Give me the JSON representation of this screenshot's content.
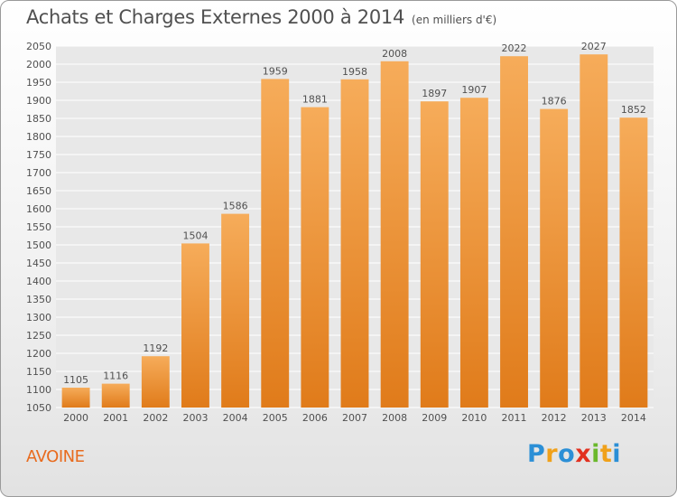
{
  "title": "Achats et Charges Externes 2000 à 2014",
  "subtitle": "(en milliers d'€)",
  "town": "AVOINE",
  "brand": {
    "text": "Proxiti",
    "letters": [
      {
        "ch": "P",
        "color": "#2b8fd6"
      },
      {
        "ch": "r",
        "color": "#f0a11a"
      },
      {
        "ch": "o",
        "color": "#2b8fd6"
      },
      {
        "ch": "x",
        "color": "#e2301f"
      },
      {
        "ch": "i",
        "color": "#6ab82c"
      },
      {
        "ch": "t",
        "color": "#f0a11a"
      },
      {
        "ch": "i",
        "color": "#2b8fd6"
      }
    ]
  },
  "colors": {
    "bar_top": "#f6ac5a",
    "bar_bottom": "#e07b1a",
    "plot_bg": "#e8e8e8",
    "grid": "#ffffff",
    "text": "#505050",
    "town": "#e86b1e"
  },
  "chart_data": {
    "type": "bar",
    "title": "Achats et Charges Externes 2000 à 2014",
    "subtitle": "(en milliers d'€)",
    "xlabel": "",
    "ylabel": "",
    "categories": [
      "2000",
      "2001",
      "2002",
      "2003",
      "2004",
      "2005",
      "2006",
      "2007",
      "2008",
      "2009",
      "2010",
      "2011",
      "2012",
      "2013",
      "2014"
    ],
    "values": [
      1105,
      1116,
      1192,
      1504,
      1586,
      1959,
      1881,
      1958,
      2008,
      1897,
      1907,
      2022,
      1876,
      2027,
      1852
    ],
    "ylim": [
      1050,
      2050
    ],
    "ytick_step": 50,
    "grid": true,
    "legend": "none"
  }
}
